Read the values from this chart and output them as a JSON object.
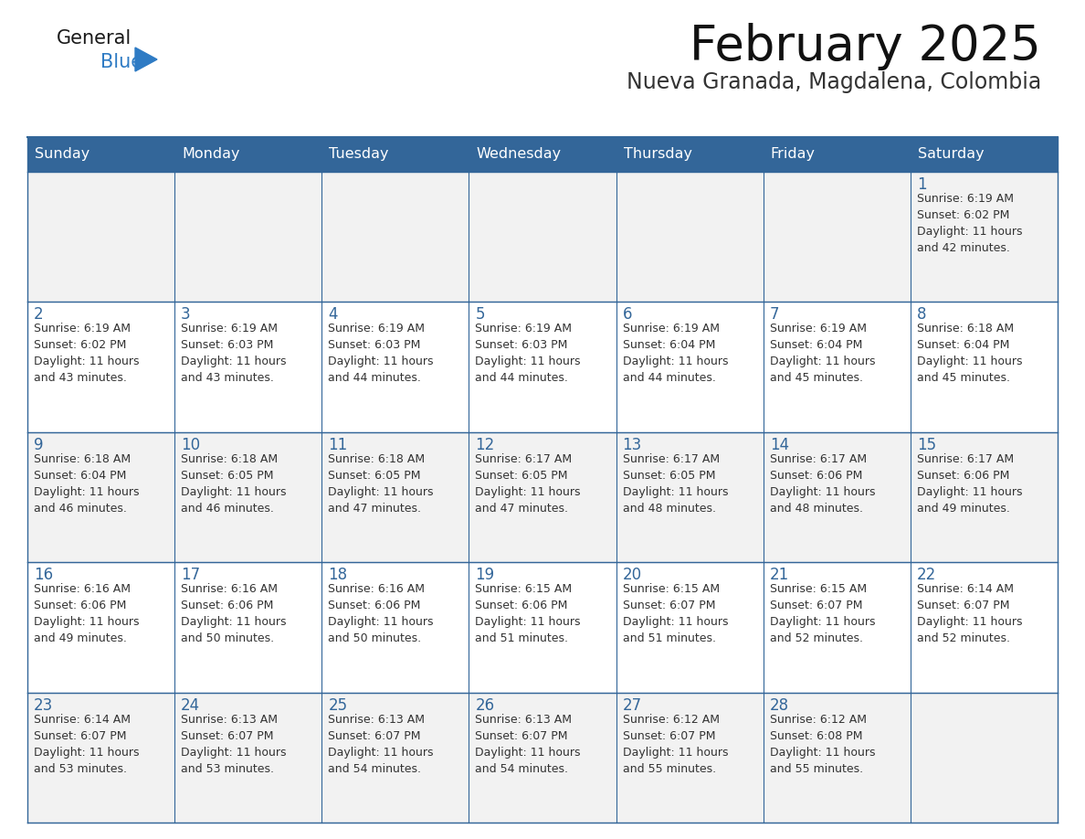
{
  "title": "February 2025",
  "subtitle": "Nueva Granada, Magdalena, Colombia",
  "header_bg": "#336699",
  "header_text": "#ffffff",
  "cell_bg_grey": "#f2f2f2",
  "cell_bg_white": "#ffffff",
  "grid_line_color": "#336699",
  "day_number_color": "#336699",
  "cell_text_color": "#333333",
  "days_of_week": [
    "Sunday",
    "Monday",
    "Tuesday",
    "Wednesday",
    "Thursday",
    "Friday",
    "Saturday"
  ],
  "logo_general_color": "#1a1a1a",
  "logo_blue_color": "#2e7bc4",
  "logo_triangle_color": "#2e7bc4",
  "calendar_data": [
    [
      {
        "day": null,
        "info": ""
      },
      {
        "day": null,
        "info": ""
      },
      {
        "day": null,
        "info": ""
      },
      {
        "day": null,
        "info": ""
      },
      {
        "day": null,
        "info": ""
      },
      {
        "day": null,
        "info": ""
      },
      {
        "day": 1,
        "info": "Sunrise: 6:19 AM\nSunset: 6:02 PM\nDaylight: 11 hours\nand 42 minutes."
      }
    ],
    [
      {
        "day": 2,
        "info": "Sunrise: 6:19 AM\nSunset: 6:02 PM\nDaylight: 11 hours\nand 43 minutes."
      },
      {
        "day": 3,
        "info": "Sunrise: 6:19 AM\nSunset: 6:03 PM\nDaylight: 11 hours\nand 43 minutes."
      },
      {
        "day": 4,
        "info": "Sunrise: 6:19 AM\nSunset: 6:03 PM\nDaylight: 11 hours\nand 44 minutes."
      },
      {
        "day": 5,
        "info": "Sunrise: 6:19 AM\nSunset: 6:03 PM\nDaylight: 11 hours\nand 44 minutes."
      },
      {
        "day": 6,
        "info": "Sunrise: 6:19 AM\nSunset: 6:04 PM\nDaylight: 11 hours\nand 44 minutes."
      },
      {
        "day": 7,
        "info": "Sunrise: 6:19 AM\nSunset: 6:04 PM\nDaylight: 11 hours\nand 45 minutes."
      },
      {
        "day": 8,
        "info": "Sunrise: 6:18 AM\nSunset: 6:04 PM\nDaylight: 11 hours\nand 45 minutes."
      }
    ],
    [
      {
        "day": 9,
        "info": "Sunrise: 6:18 AM\nSunset: 6:04 PM\nDaylight: 11 hours\nand 46 minutes."
      },
      {
        "day": 10,
        "info": "Sunrise: 6:18 AM\nSunset: 6:05 PM\nDaylight: 11 hours\nand 46 minutes."
      },
      {
        "day": 11,
        "info": "Sunrise: 6:18 AM\nSunset: 6:05 PM\nDaylight: 11 hours\nand 47 minutes."
      },
      {
        "day": 12,
        "info": "Sunrise: 6:17 AM\nSunset: 6:05 PM\nDaylight: 11 hours\nand 47 minutes."
      },
      {
        "day": 13,
        "info": "Sunrise: 6:17 AM\nSunset: 6:05 PM\nDaylight: 11 hours\nand 48 minutes."
      },
      {
        "day": 14,
        "info": "Sunrise: 6:17 AM\nSunset: 6:06 PM\nDaylight: 11 hours\nand 48 minutes."
      },
      {
        "day": 15,
        "info": "Sunrise: 6:17 AM\nSunset: 6:06 PM\nDaylight: 11 hours\nand 49 minutes."
      }
    ],
    [
      {
        "day": 16,
        "info": "Sunrise: 6:16 AM\nSunset: 6:06 PM\nDaylight: 11 hours\nand 49 minutes."
      },
      {
        "day": 17,
        "info": "Sunrise: 6:16 AM\nSunset: 6:06 PM\nDaylight: 11 hours\nand 50 minutes."
      },
      {
        "day": 18,
        "info": "Sunrise: 6:16 AM\nSunset: 6:06 PM\nDaylight: 11 hours\nand 50 minutes."
      },
      {
        "day": 19,
        "info": "Sunrise: 6:15 AM\nSunset: 6:06 PM\nDaylight: 11 hours\nand 51 minutes."
      },
      {
        "day": 20,
        "info": "Sunrise: 6:15 AM\nSunset: 6:07 PM\nDaylight: 11 hours\nand 51 minutes."
      },
      {
        "day": 21,
        "info": "Sunrise: 6:15 AM\nSunset: 6:07 PM\nDaylight: 11 hours\nand 52 minutes."
      },
      {
        "day": 22,
        "info": "Sunrise: 6:14 AM\nSunset: 6:07 PM\nDaylight: 11 hours\nand 52 minutes."
      }
    ],
    [
      {
        "day": 23,
        "info": "Sunrise: 6:14 AM\nSunset: 6:07 PM\nDaylight: 11 hours\nand 53 minutes."
      },
      {
        "day": 24,
        "info": "Sunrise: 6:13 AM\nSunset: 6:07 PM\nDaylight: 11 hours\nand 53 minutes."
      },
      {
        "day": 25,
        "info": "Sunrise: 6:13 AM\nSunset: 6:07 PM\nDaylight: 11 hours\nand 54 minutes."
      },
      {
        "day": 26,
        "info": "Sunrise: 6:13 AM\nSunset: 6:07 PM\nDaylight: 11 hours\nand 54 minutes."
      },
      {
        "day": 27,
        "info": "Sunrise: 6:12 AM\nSunset: 6:07 PM\nDaylight: 11 hours\nand 55 minutes."
      },
      {
        "day": 28,
        "info": "Sunrise: 6:12 AM\nSunset: 6:08 PM\nDaylight: 11 hours\nand 55 minutes."
      },
      {
        "day": null,
        "info": ""
      }
    ]
  ],
  "row_bg": [
    "grey",
    "white",
    "grey",
    "white",
    "grey"
  ]
}
